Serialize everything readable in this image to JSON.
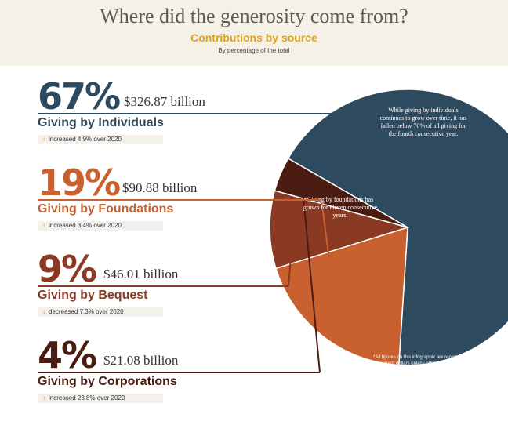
{
  "header": {
    "title": "Where did the generosity come from?",
    "subtitle": "Contributions by source",
    "note": "By percentage of the total"
  },
  "sources": [
    {
      "percent_label": "67%",
      "amount": "$326.87 billion",
      "category": "Giving by Individuals",
      "change": "increased 4.9% over 2020",
      "change_arrow": "↑"
    },
    {
      "percent_label": "19%",
      "amount": "$90.88 billion",
      "category": "Giving by Foundations",
      "change": "increased 3.4% over 2020",
      "change_arrow": "↑"
    },
    {
      "percent_label": "9%",
      "amount": "$46.01 billion",
      "category": "Giving by Bequest",
      "change": "decreased 7.3% over 2020",
      "change_arrow": "↓"
    },
    {
      "percent_label": "4%",
      "amount": "$21.08 billion",
      "category": "Giving by Corporations",
      "change": "increased 23.8% over 2020",
      "change_arrow": "↑"
    }
  ],
  "pie_notes": {
    "individuals": "While giving by individuals continues to grow over time, it has fallen below 70% of all giving for the fourth consecutive year.",
    "foundations": "Giving by foundations has grown for eleven consecutive years."
  },
  "footnote": "*All figures on this infographic are reported in current dollars unless otherwise noted.",
  "colors": {
    "individuals": "#2e4a5e",
    "foundations": "#c8612f",
    "bequest": "#8a3a22",
    "corporations": "#4a1c12",
    "accent": "#d9a21f"
  },
  "chart_data": {
    "type": "pie",
    "title": "Where did the generosity come from?",
    "subtitle": "Contributions by source",
    "categories": [
      "Giving by Individuals",
      "Giving by Foundations",
      "Giving by Bequest",
      "Giving by Corporations"
    ],
    "values": [
      67,
      19,
      9,
      4
    ],
    "unit": "%",
    "amounts_billion_usd": [
      326.87,
      90.88,
      46.01,
      21.08
    ],
    "change_vs_2020_percent": [
      4.9,
      3.4,
      -7.3,
      23.8
    ]
  }
}
